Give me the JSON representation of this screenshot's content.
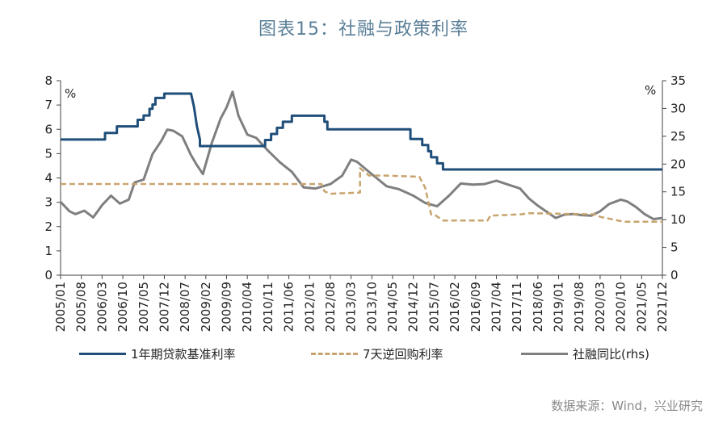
{
  "title": "图表15：社融与政策利率",
  "source": "数据来源：Wind，兴业研究",
  "chart_data": {
    "type": "line",
    "left_unit": "%",
    "right_unit": "%",
    "ylim_left": [
      0,
      8
    ],
    "ylim_right": [
      0,
      35
    ],
    "yticks_left": [
      "0",
      "1",
      "2",
      "3",
      "4",
      "5",
      "6",
      "7",
      "8"
    ],
    "yticks_right": [
      "0",
      "5",
      "10",
      "15",
      "20",
      "25",
      "30",
      "35"
    ],
    "xticks": [
      "2005/01",
      "2005/08",
      "2006/03",
      "2006/10",
      "2007/05",
      "2007/12",
      "2008/07",
      "2009/02",
      "2009/09",
      "2010/04",
      "2010/11",
      "2011/06",
      "2012/01",
      "2012/08",
      "2013/03",
      "2013/10",
      "2014/05",
      "2014/12",
      "2015/07",
      "2016/02",
      "2016/09",
      "2017/04",
      "2017/11",
      "2018/06",
      "2019/01",
      "2019/08",
      "2020/03",
      "2020/10",
      "2021/05",
      "2021/12"
    ],
    "series": [
      {
        "name": "1年期贷款基准利率",
        "axis": "left",
        "color": "#1f4e79",
        "style": "solid",
        "points": [
          [
            "2005/01",
            5.58
          ],
          [
            "2006/04",
            5.58
          ],
          [
            "2006/04",
            5.85
          ],
          [
            "2006/08",
            5.85
          ],
          [
            "2006/08",
            6.12
          ],
          [
            "2007/03",
            6.12
          ],
          [
            "2007/03",
            6.39
          ],
          [
            "2007/05",
            6.39
          ],
          [
            "2007/05",
            6.57
          ],
          [
            "2007/07",
            6.57
          ],
          [
            "2007/07",
            6.84
          ],
          [
            "2007/08",
            6.84
          ],
          [
            "2007/08",
            7.02
          ],
          [
            "2007/09",
            7.02
          ],
          [
            "2007/09",
            7.29
          ],
          [
            "2007/12",
            7.29
          ],
          [
            "2007/12",
            7.47
          ],
          [
            "2008/09",
            7.47
          ],
          [
            "2008/10",
            6.93
          ],
          [
            "2008/11",
            6.12
          ],
          [
            "2008/12",
            5.58
          ],
          [
            "2008/12",
            5.31
          ],
          [
            "2010/10",
            5.31
          ],
          [
            "2010/10",
            5.56
          ],
          [
            "2010/12",
            5.56
          ],
          [
            "2010/12",
            5.81
          ],
          [
            "2011/02",
            5.81
          ],
          [
            "2011/02",
            6.06
          ],
          [
            "2011/04",
            6.06
          ],
          [
            "2011/04",
            6.31
          ],
          [
            "2011/07",
            6.31
          ],
          [
            "2011/07",
            6.56
          ],
          [
            "2012/06",
            6.56
          ],
          [
            "2012/06",
            6.31
          ],
          [
            "2012/07",
            6.31
          ],
          [
            "2012/07",
            6.0
          ],
          [
            "2014/11",
            6.0
          ],
          [
            "2014/11",
            5.6
          ],
          [
            "2015/03",
            5.6
          ],
          [
            "2015/03",
            5.35
          ],
          [
            "2015/05",
            5.35
          ],
          [
            "2015/05",
            5.1
          ],
          [
            "2015/06",
            5.1
          ],
          [
            "2015/06",
            4.85
          ],
          [
            "2015/08",
            4.85
          ],
          [
            "2015/08",
            4.6
          ],
          [
            "2015/10",
            4.6
          ],
          [
            "2015/10",
            4.35
          ],
          [
            "2021/12",
            4.35
          ]
        ]
      },
      {
        "name": "7天逆回购利率",
        "axis": "left",
        "color": "#c8a46e",
        "style": "dashed",
        "points": [
          [
            "2005/01",
            3.75
          ],
          [
            "2012/05",
            3.75
          ],
          [
            "2012/06",
            3.45
          ],
          [
            "2012/08",
            3.35
          ],
          [
            "2013/06",
            3.4
          ],
          [
            "2013/06",
            4.4
          ],
          [
            "2013/09",
            4.1
          ],
          [
            "2013/12",
            4.1
          ],
          [
            "2014/02",
            4.1
          ],
          [
            "2015/02",
            4.05
          ],
          [
            "2015/04",
            3.6
          ],
          [
            "2015/06",
            2.5
          ],
          [
            "2015/07",
            2.5
          ],
          [
            "2015/10",
            2.25
          ],
          [
            "2017/01",
            2.25
          ],
          [
            "2017/02",
            2.45
          ],
          [
            "2017/12",
            2.5
          ],
          [
            "2018/03",
            2.55
          ],
          [
            "2020/02",
            2.5
          ],
          [
            "2020/03",
            2.4
          ],
          [
            "2020/11",
            2.2
          ],
          [
            "2021/12",
            2.2
          ]
        ]
      },
      {
        "name": "社融同比(rhs)",
        "axis": "right",
        "color": "#7f7f7f",
        "style": "solid",
        "points": [
          [
            "2005/01",
            13.2
          ],
          [
            "2005/04",
            11.5
          ],
          [
            "2005/06",
            11.0
          ],
          [
            "2005/09",
            11.6
          ],
          [
            "2005/12",
            10.4
          ],
          [
            "2006/03",
            12.6
          ],
          [
            "2006/06",
            14.3
          ],
          [
            "2006/09",
            12.9
          ],
          [
            "2006/12",
            13.6
          ],
          [
            "2007/02",
            16.7
          ],
          [
            "2007/05",
            17.2
          ],
          [
            "2007/08",
            21.8
          ],
          [
            "2007/11",
            24.2
          ],
          [
            "2008/01",
            26.2
          ],
          [
            "2008/03",
            26.0
          ],
          [
            "2008/06",
            25.0
          ],
          [
            "2008/09",
            21.6
          ],
          [
            "2008/11",
            19.8
          ],
          [
            "2009/01",
            18.2
          ],
          [
            "2009/04",
            23.8
          ],
          [
            "2009/07",
            28.2
          ],
          [
            "2009/09",
            30.2
          ],
          [
            "2009/11",
            33.0
          ],
          [
            "2010/01",
            28.7
          ],
          [
            "2010/04",
            25.3
          ],
          [
            "2010/07",
            24.7
          ],
          [
            "2010/11",
            22.4
          ],
          [
            "2011/03",
            20.3
          ],
          [
            "2011/07",
            18.6
          ],
          [
            "2011/11",
            15.8
          ],
          [
            "2012/03",
            15.6
          ],
          [
            "2012/08",
            16.4
          ],
          [
            "2012/12",
            17.9
          ],
          [
            "2013/03",
            20.8
          ],
          [
            "2013/05",
            20.4
          ],
          [
            "2013/09",
            18.6
          ],
          [
            "2013/12",
            17.3
          ],
          [
            "2014/03",
            16.0
          ],
          [
            "2014/07",
            15.5
          ],
          [
            "2014/12",
            14.3
          ],
          [
            "2015/04",
            13.0
          ],
          [
            "2015/08",
            12.4
          ],
          [
            "2015/12",
            14.3
          ],
          [
            "2016/04",
            16.5
          ],
          [
            "2016/08",
            16.3
          ],
          [
            "2016/12",
            16.4
          ],
          [
            "2017/04",
            17.0
          ],
          [
            "2017/08",
            16.3
          ],
          [
            "2017/12",
            15.6
          ],
          [
            "2018/03",
            13.8
          ],
          [
            "2018/06",
            12.5
          ],
          [
            "2018/09",
            11.4
          ],
          [
            "2018/12",
            10.3
          ],
          [
            "2019/03",
            10.9
          ],
          [
            "2019/06",
            11.0
          ],
          [
            "2019/09",
            10.8
          ],
          [
            "2019/12",
            10.7
          ],
          [
            "2020/03",
            11.5
          ],
          [
            "2020/06",
            12.8
          ],
          [
            "2020/10",
            13.6
          ],
          [
            "2020/12",
            13.3
          ],
          [
            "2021/03",
            12.3
          ],
          [
            "2021/06",
            11.0
          ],
          [
            "2021/09",
            10.1
          ],
          [
            "2021/12",
            10.3
          ]
        ]
      }
    ]
  }
}
